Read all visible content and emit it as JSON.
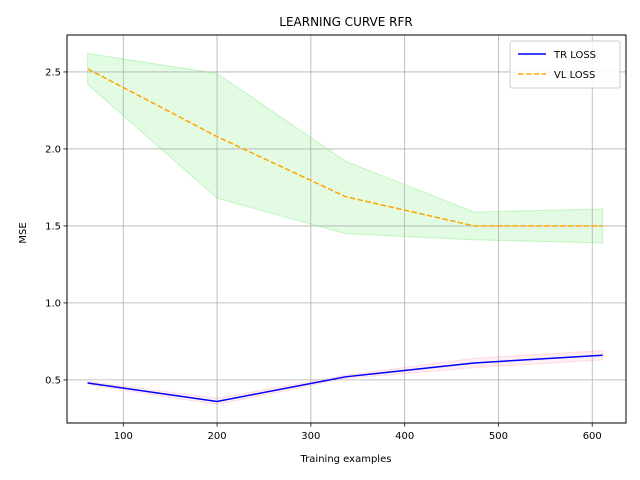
{
  "chart_data": {
    "type": "line",
    "title": "LEARNING CURVE RFR",
    "xlabel": "Training examples",
    "ylabel": "MSE",
    "xlim": [
      40,
      636
    ],
    "ylim": [
      0.22,
      2.74
    ],
    "xticks": [
      100,
      200,
      300,
      400,
      500,
      600
    ],
    "yticks": [
      0.5,
      1.0,
      1.5,
      2.0,
      2.5
    ],
    "xtick_labels": [
      "100",
      "200",
      "300",
      "400",
      "500",
      "600"
    ],
    "ytick_labels": [
      "0.5",
      "1.0",
      "1.5",
      "2.0",
      "2.5"
    ],
    "grid": true,
    "legend_position": "top-right",
    "x": [
      62,
      200,
      337,
      474,
      611
    ],
    "series": [
      {
        "name": "TR LOSS",
        "color": "#0000ff",
        "style": "solid",
        "values": [
          0.48,
          0.36,
          0.52,
          0.61,
          0.66
        ],
        "band_lower": [
          0.47,
          0.34,
          0.51,
          0.58,
          0.63
        ],
        "band_upper": [
          0.49,
          0.38,
          0.53,
          0.64,
          0.69
        ],
        "band_color": "#ffc0cb"
      },
      {
        "name": "VL LOSS",
        "color": "#ffa500",
        "style": "dashed",
        "values": [
          2.52,
          2.08,
          1.69,
          1.5,
          1.5
        ],
        "band_lower": [
          2.42,
          1.68,
          1.45,
          1.41,
          1.39
        ],
        "band_upper": [
          2.62,
          2.49,
          1.92,
          1.59,
          1.61
        ],
        "band_color": "#90ee90"
      }
    ]
  }
}
